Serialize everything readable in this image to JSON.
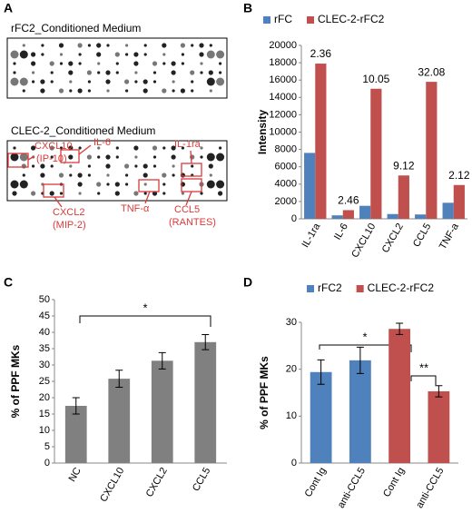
{
  "panel_labels": [
    "A",
    "B",
    "C",
    "D"
  ],
  "blot_panel": {
    "titles": [
      "rFC2_Conditioned Medium",
      "CLEC-2_Conditioned Medium"
    ],
    "annotations": [
      "CXCL10",
      "(IP-10)",
      "IL-6",
      "IL-1ra",
      "CXCL2",
      "(MIP-2)",
      "TNF-α",
      "CCL5",
      "(RANTES)"
    ]
  },
  "chart_data": [
    {
      "type": "bar",
      "y_label": "Intensity",
      "categories": [
        "IL-1ra",
        "IL-6",
        "CXCL10",
        "CXCL2",
        "CCL5",
        "TNF-a"
      ],
      "series": [
        {
          "name": "rFC",
          "color": "#4f81bd",
          "values": [
            7600,
            400,
            1500,
            550,
            500,
            1850
          ]
        },
        {
          "name": "CLEC-2-rFC2",
          "color": "#c0504d",
          "values": [
            17900,
            1000,
            15000,
            5000,
            15800,
            3900
          ]
        }
      ],
      "fold_changes": [
        2.36,
        2.46,
        10.05,
        9.12,
        32.08,
        2.12
      ],
      "ylim": [
        0,
        20000
      ],
      "yticks": [
        0,
        2000,
        4000,
        6000,
        8000,
        10000,
        12000,
        14000,
        16000,
        18000,
        20000
      ]
    },
    {
      "type": "bar",
      "y_label": "% of PPF MKs",
      "categories": [
        "NC",
        "CXCL10",
        "CXCL2",
        "CCL5"
      ],
      "values": [
        17.5,
        25.8,
        31.3,
        37
      ],
      "errors": [
        2.5,
        2.6,
        2.5,
        2.3
      ],
      "color": "#808080",
      "significance": "*",
      "ylim": [
        0,
        50
      ],
      "yticks": [
        0,
        5,
        10,
        15,
        20,
        25,
        30,
        35,
        40,
        45,
        50
      ]
    },
    {
      "type": "bar",
      "y_label": "% of PPF MKs",
      "categories": [
        "Cont Ig",
        "anti-CCL5",
        "Cont Ig",
        "anti-CCL5"
      ],
      "series": [
        {
          "name": "rFC2",
          "color": "#4f81bd",
          "values": [
            19.4,
            21.9,
            null,
            null
          ],
          "errors": [
            2.6,
            2.8,
            null,
            null
          ]
        },
        {
          "name": "CLEC-2-rFC2",
          "color": "#c0504d",
          "values": [
            null,
            null,
            28.6,
            15.3
          ],
          "errors": [
            null,
            null,
            1.2,
            1.2
          ]
        }
      ],
      "significance": [
        "*",
        "**"
      ],
      "ylim": [
        0,
        30
      ],
      "yticks": [
        0,
        10,
        20,
        30
      ]
    }
  ]
}
